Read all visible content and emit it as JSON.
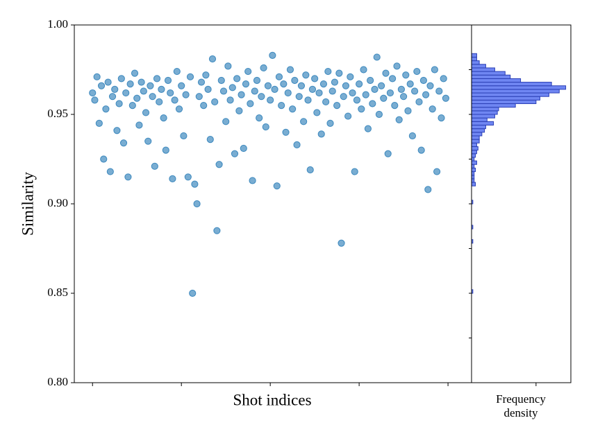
{
  "chart_data": [
    {
      "type": "scatter",
      "xlabel": "Shot indices",
      "ylabel": "Similarity",
      "color": "#1f77b4",
      "xlim": [
        -41,
        853
      ],
      "xticks": [
        0,
        200,
        400,
        600,
        800
      ],
      "ylim": [
        0.8,
        1.0
      ],
      "yticks": [
        {
          "value": 0.8,
          "label": "0.80"
        },
        0.85,
        {
          "value": 0.9,
          "label": "0.90"
        },
        0.95,
        {
          "value": 1.0,
          "label": "1.00"
        }
      ],
      "x": [
        0,
        5,
        10,
        15,
        20,
        25,
        30,
        35,
        40,
        45,
        50,
        55,
        60,
        65,
        70,
        75,
        80,
        85,
        90,
        95,
        100,
        105,
        110,
        115,
        120,
        125,
        130,
        135,
        140,
        145,
        150,
        155,
        160,
        165,
        170,
        175,
        180,
        185,
        190,
        195,
        200,
        205,
        210,
        215,
        220,
        225,
        230,
        235,
        240,
        245,
        250,
        255,
        260,
        265,
        270,
        275,
        280,
        285,
        290,
        295,
        300,
        305,
        310,
        315,
        320,
        325,
        330,
        335,
        340,
        345,
        350,
        355,
        360,
        365,
        370,
        375,
        380,
        385,
        390,
        395,
        400,
        405,
        410,
        415,
        420,
        425,
        430,
        435,
        440,
        445,
        450,
        455,
        460,
        465,
        470,
        475,
        480,
        485,
        490,
        495,
        500,
        505,
        510,
        515,
        520,
        525,
        530,
        535,
        540,
        545,
        550,
        555,
        560,
        565,
        570,
        575,
        580,
        585,
        590,
        595,
        600,
        605,
        610,
        615,
        620,
        625,
        630,
        635,
        640,
        645,
        650,
        655,
        660,
        665,
        670,
        675,
        680,
        685,
        690,
        695,
        700,
        705,
        710,
        715,
        720,
        725,
        730,
        735,
        740,
        745,
        750,
        755,
        760,
        765,
        770,
        775,
        780,
        785,
        790,
        795
      ],
      "values": [
        0.962,
        0.958,
        0.971,
        0.945,
        0.966,
        0.925,
        0.953,
        0.968,
        0.918,
        0.96,
        0.964,
        0.941,
        0.956,
        0.97,
        0.934,
        0.962,
        0.915,
        0.967,
        0.955,
        0.973,
        0.959,
        0.944,
        0.968,
        0.963,
        0.951,
        0.935,
        0.966,
        0.96,
        0.921,
        0.97,
        0.957,
        0.964,
        0.948,
        0.93,
        0.969,
        0.962,
        0.914,
        0.958,
        0.974,
        0.953,
        0.966,
        0.938,
        0.961,
        0.915,
        0.971,
        0.85,
        0.911,
        0.9,
        0.96,
        0.968,
        0.955,
        0.972,
        0.964,
        0.936,
        0.981,
        0.957,
        0.885,
        0.922,
        0.969,
        0.963,
        0.946,
        0.977,
        0.958,
        0.965,
        0.928,
        0.97,
        0.952,
        0.961,
        0.931,
        0.967,
        0.974,
        0.956,
        0.913,
        0.963,
        0.969,
        0.948,
        0.96,
        0.976,
        0.943,
        0.966,
        0.958,
        0.983,
        0.964,
        0.91,
        0.971,
        0.955,
        0.967,
        0.94,
        0.962,
        0.975,
        0.953,
        0.969,
        0.933,
        0.96,
        0.966,
        0.946,
        0.972,
        0.958,
        0.919,
        0.964,
        0.97,
        0.951,
        0.962,
        0.939,
        0.967,
        0.957,
        0.974,
        0.945,
        0.963,
        0.968,
        0.955,
        0.973,
        0.878,
        0.96,
        0.966,
        0.949,
        0.971,
        0.962,
        0.918,
        0.958,
        0.967,
        0.953,
        0.975,
        0.961,
        0.942,
        0.969,
        0.956,
        0.964,
        0.982,
        0.95,
        0.966,
        0.959,
        0.973,
        0.928,
        0.962,
        0.97,
        0.955,
        0.977,
        0.947,
        0.964,
        0.96,
        0.972,
        0.952,
        0.967,
        0.938,
        0.963,
        0.974,
        0.957,
        0.93,
        0.969,
        0.961,
        0.908,
        0.966,
        0.953,
        0.975,
        0.918,
        0.963,
        0.948,
        0.97,
        0.959
      ]
    },
    {
      "type": "histogram",
      "orientation": "horizontal",
      "xlabel": "Frequency density",
      "color": "#6f86f2",
      "edgecolor": "#2b3fb5",
      "xlim": [
        0,
        77
      ],
      "xticks": [
        50
      ],
      "ylim": [
        0.8,
        1.0
      ],
      "yticks": [
        0.825,
        0.85,
        0.875,
        0.9,
        0.925,
        0.95,
        0.975
      ],
      "bins": [
        0.848,
        0.85,
        0.852,
        0.854,
        0.856,
        0.858,
        0.86,
        0.862,
        0.864,
        0.866,
        0.868,
        0.87,
        0.872,
        0.874,
        0.876,
        0.878,
        0.88,
        0.882,
        0.884,
        0.886,
        0.888,
        0.89,
        0.892,
        0.894,
        0.896,
        0.898,
        0.9,
        0.902,
        0.904,
        0.906,
        0.908,
        0.91,
        0.912,
        0.914,
        0.916,
        0.918,
        0.92,
        0.922,
        0.924,
        0.926,
        0.928,
        0.93,
        0.932,
        0.934,
        0.936,
        0.938,
        0.94,
        0.942,
        0.944,
        0.946,
        0.948,
        0.95,
        0.952,
        0.954,
        0.956,
        0.958,
        0.96,
        0.962,
        0.964,
        0.966,
        0.968,
        0.97,
        0.972,
        0.974,
        0.976,
        0.978,
        0.98,
        0.982,
        0.984
      ],
      "values": [
        0,
        1,
        0,
        0,
        0,
        0,
        0,
        0,
        0,
        0,
        0,
        0,
        0,
        0,
        0,
        1,
        0,
        0,
        0,
        1,
        0,
        0,
        0,
        0,
        0,
        0,
        1,
        0,
        0,
        0,
        0,
        3,
        2,
        2,
        2,
        3,
        2,
        4,
        2,
        3,
        4,
        5,
        4,
        6,
        6,
        8,
        10,
        11,
        17,
        12,
        18,
        20,
        21,
        34,
        50,
        53,
        60,
        68,
        73,
        62,
        38,
        30,
        26,
        18,
        11,
        6,
        4,
        4
      ]
    }
  ]
}
